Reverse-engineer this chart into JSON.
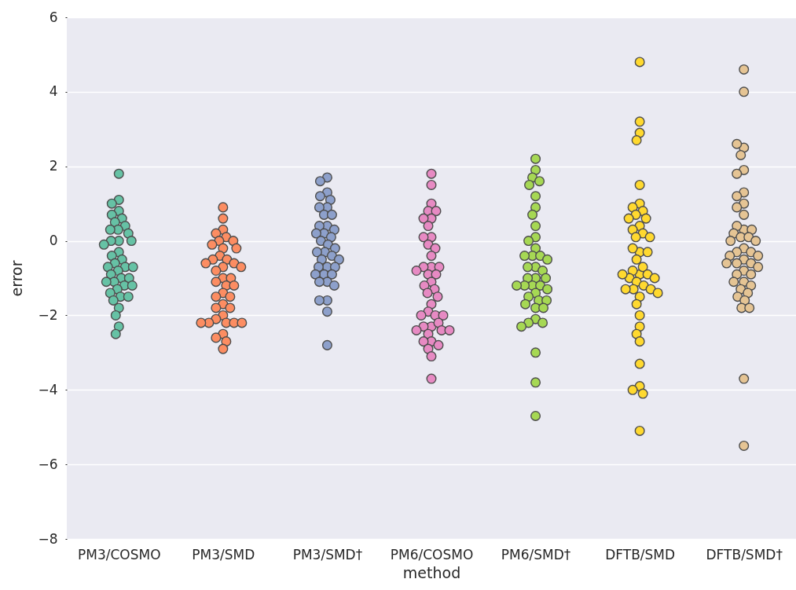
{
  "chart_data": {
    "type": "scatter",
    "xlabel": "method",
    "ylabel": "error",
    "categories": [
      "PM3/COSMO",
      "PM3/SMD",
      "PM3/SMD†",
      "PM6/COSMO",
      "PM6/SMD†",
      "DFTB/SMD",
      "DFTB/SMD†"
    ],
    "ylim": [
      -8,
      6
    ],
    "yticks": [
      -8,
      -6,
      -4,
      -2,
      0,
      2,
      4,
      6
    ],
    "grid": "y",
    "marker": "circle",
    "series": [
      {
        "color": "#66c2a5",
        "x": [
          "PM3/COSMO",
          "PM3/COSMO",
          "PM3/COSMO",
          "PM3/COSMO",
          "PM3/COSMO",
          "PM3/COSMO",
          "PM3/COSMO",
          "PM3/COSMO",
          "PM3/COSMO",
          "PM3/COSMO",
          "PM3/COSMO",
          "PM3/COSMO",
          "PM3/COSMO",
          "PM3/COSMO",
          "PM3/COSMO",
          "PM3/COSMO",
          "PM3/COSMO",
          "PM3/COSMO",
          "PM3/COSMO",
          "PM3/COSMO",
          "PM3/COSMO",
          "PM3/COSMO",
          "PM3/COSMO",
          "PM3/COSMO",
          "PM3/COSMO",
          "PM3/COSMO",
          "PM3/COSMO",
          "PM3/COSMO",
          "PM3/COSMO",
          "PM3/COSMO",
          "PM3/COSMO",
          "PM3/COSMO",
          "PM3/COSMO",
          "PM3/COSMO",
          "PM3/COSMO",
          "PM3/COSMO",
          "PM3/COSMO",
          "PM3/COSMO",
          "PM3/COSMO"
        ],
        "values": [
          1.8,
          1.1,
          1.0,
          0.8,
          0.7,
          0.6,
          0.5,
          0.4,
          0.3,
          0.3,
          0.2,
          0,
          0,
          0,
          -0.1,
          -0.3,
          -0.4,
          -0.5,
          -0.6,
          -0.7,
          -0.7,
          -0.7,
          -0.8,
          -0.9,
          -1.0,
          -1.0,
          -1.1,
          -1.1,
          -1.2,
          -1.2,
          -1.3,
          -1.4,
          -1.5,
          -1.5,
          -1.6,
          -1.8,
          -2.0,
          -2.3,
          -2.5
        ]
      },
      {
        "color": "#fc8d62",
        "x": [
          "PM3/SMD",
          "PM3/SMD",
          "PM3/SMD",
          "PM3/SMD",
          "PM3/SMD",
          "PM3/SMD",
          "PM3/SMD",
          "PM3/SMD",
          "PM3/SMD",
          "PM3/SMD",
          "PM3/SMD",
          "PM3/SMD",
          "PM3/SMD",
          "PM3/SMD",
          "PM3/SMD",
          "PM3/SMD",
          "PM3/SMD",
          "PM3/SMD",
          "PM3/SMD",
          "PM3/SMD",
          "PM3/SMD",
          "PM3/SMD",
          "PM3/SMD",
          "PM3/SMD",
          "PM3/SMD",
          "PM3/SMD",
          "PM3/SMD",
          "PM3/SMD",
          "PM3/SMD",
          "PM3/SMD",
          "PM3/SMD",
          "PM3/SMD",
          "PM3/SMD",
          "PM3/SMD",
          "PM3/SMD",
          "PM3/SMD",
          "PM3/SMD",
          "PM3/SMD",
          "PM3/SMD",
          "PM3/SMD"
        ],
        "values": [
          0.9,
          0.6,
          0.3,
          0.2,
          0.1,
          0,
          0,
          -0.1,
          -0.2,
          -0.2,
          -0.4,
          -0.5,
          -0.5,
          -0.6,
          -0.7,
          -0.6,
          -0.7,
          -0.8,
          -1.0,
          -1.0,
          -1.1,
          -1.2,
          -1.2,
          -1.4,
          -1.5,
          -1.5,
          -1.7,
          -1.8,
          -1.8,
          -2.0,
          -2.1,
          -2.2,
          -2.2,
          -2.2,
          -2.2,
          -2.2,
          -2.5,
          -2.6,
          -2.7,
          -2.9
        ]
      },
      {
        "color": "#8da0cb",
        "x": [
          "PM3/SMD†",
          "PM3/SMD†",
          "PM3/SMD†",
          "PM3/SMD†",
          "PM3/SMD†",
          "PM3/SMD†",
          "PM3/SMD†",
          "PM3/SMD†",
          "PM3/SMD†",
          "PM3/SMD†",
          "PM3/SMD†",
          "PM3/SMD†",
          "PM3/SMD†",
          "PM3/SMD†",
          "PM3/SMD†",
          "PM3/SMD†",
          "PM3/SMD†",
          "PM3/SMD†",
          "PM3/SMD†",
          "PM3/SMD†",
          "PM3/SMD†",
          "PM3/SMD†",
          "PM3/SMD†",
          "PM3/SMD†",
          "PM3/SMD†",
          "PM3/SMD†",
          "PM3/SMD†",
          "PM3/SMD†",
          "PM3/SMD†",
          "PM3/SMD†",
          "PM3/SMD†",
          "PM3/SMD†",
          "PM3/SMD†",
          "PM3/SMD†",
          "PM3/SMD†",
          "PM3/SMD†"
        ],
        "values": [
          1.7,
          1.6,
          1.3,
          1.2,
          1.1,
          0.9,
          0.9,
          0.7,
          0.7,
          0.4,
          0.4,
          0.3,
          0.2,
          0.2,
          0.1,
          0,
          -0.1,
          -0.2,
          -0.3,
          -0.3,
          -0.4,
          -0.5,
          -0.5,
          -0.7,
          -0.7,
          -0.7,
          -0.9,
          -0.9,
          -0.9,
          -1.1,
          -1.1,
          -1.2,
          -1.6,
          -1.6,
          -1.9,
          -2.8
        ]
      },
      {
        "color": "#e78ac3",
        "x": [
          "PM6/COSMO",
          "PM6/COSMO",
          "PM6/COSMO",
          "PM6/COSMO",
          "PM6/COSMO",
          "PM6/COSMO",
          "PM6/COSMO",
          "PM6/COSMO",
          "PM6/COSMO",
          "PM6/COSMO",
          "PM6/COSMO",
          "PM6/COSMO",
          "PM6/COSMO",
          "PM6/COSMO",
          "PM6/COSMO",
          "PM6/COSMO",
          "PM6/COSMO",
          "PM6/COSMO",
          "PM6/COSMO",
          "PM6/COSMO",
          "PM6/COSMO",
          "PM6/COSMO",
          "PM6/COSMO",
          "PM6/COSMO",
          "PM6/COSMO",
          "PM6/COSMO",
          "PM6/COSMO",
          "PM6/COSMO",
          "PM6/COSMO",
          "PM6/COSMO",
          "PM6/COSMO",
          "PM6/COSMO",
          "PM6/COSMO",
          "PM6/COSMO",
          "PM6/COSMO",
          "PM6/COSMO",
          "PM6/COSMO",
          "PM6/COSMO",
          "PM6/COSMO",
          "PM6/COSMO",
          "PM6/COSMO",
          "PM6/COSMO"
        ],
        "values": [
          1.8,
          1.5,
          1.0,
          0.8,
          0.8,
          0.6,
          0.6,
          0.4,
          0.1,
          0.1,
          -0.1,
          -0.2,
          -0.4,
          -0.7,
          -0.7,
          -0.7,
          -0.8,
          -0.9,
          -0.9,
          -1.1,
          -1.2,
          -1.3,
          -1.4,
          -1.5,
          -1.7,
          -1.9,
          -2.0,
          -2.0,
          -2.0,
          -2.3,
          -2.3,
          -2.2,
          -2.4,
          -2.4,
          -2.4,
          -2.5,
          -2.7,
          -2.7,
          -2.8,
          -2.9,
          -3.1,
          -3.7
        ]
      },
      {
        "color": "#a6d854",
        "x": [
          "PM6/SMD†",
          "PM6/SMD†",
          "PM6/SMD†",
          "PM6/SMD†",
          "PM6/SMD†",
          "PM6/SMD†",
          "PM6/SMD†",
          "PM6/SMD†",
          "PM6/SMD†",
          "PM6/SMD†",
          "PM6/SMD†",
          "PM6/SMD†",
          "PM6/SMD†",
          "PM6/SMD†",
          "PM6/SMD†",
          "PM6/SMD†",
          "PM6/SMD†",
          "PM6/SMD†",
          "PM6/SMD†",
          "PM6/SMD†",
          "PM6/SMD†",
          "PM6/SMD†",
          "PM6/SMD†",
          "PM6/SMD†",
          "PM6/SMD†",
          "PM6/SMD†",
          "PM6/SMD†",
          "PM6/SMD†",
          "PM6/SMD†",
          "PM6/SMD†",
          "PM6/SMD†",
          "PM6/SMD†",
          "PM6/SMD†",
          "PM6/SMD†",
          "PM6/SMD†",
          "PM6/SMD†",
          "PM6/SMD†",
          "PM6/SMD†",
          "PM6/SMD†",
          "PM6/SMD†",
          "PM6/SMD†"
        ],
        "values": [
          2.2,
          1.9,
          1.7,
          1.6,
          1.5,
          1.2,
          0.9,
          0.7,
          0.4,
          0.1,
          0,
          -0.2,
          -0.4,
          -0.4,
          -0.4,
          -0.5,
          -0.7,
          -0.7,
          -0.8,
          -1.0,
          -1.0,
          -1.0,
          -1.2,
          -1.2,
          -1.2,
          -1.4,
          -1.3,
          -1.2,
          -1.5,
          -1.6,
          -1.6,
          -1.8,
          -1.7,
          -1.8,
          -2.1,
          -2.2,
          -2.2,
          -2.3,
          -3.0,
          -3.8,
          -4.7
        ]
      },
      {
        "color": "#ffd92f",
        "x": [
          "DFTB/SMD",
          "DFTB/SMD",
          "DFTB/SMD",
          "DFTB/SMD",
          "DFTB/SMD",
          "DFTB/SMD",
          "DFTB/SMD",
          "DFTB/SMD",
          "DFTB/SMD",
          "DFTB/SMD",
          "DFTB/SMD",
          "DFTB/SMD",
          "DFTB/SMD",
          "DFTB/SMD",
          "DFTB/SMD",
          "DFTB/SMD",
          "DFTB/SMD",
          "DFTB/SMD",
          "DFTB/SMD",
          "DFTB/SMD",
          "DFTB/SMD",
          "DFTB/SMD",
          "DFTB/SMD",
          "DFTB/SMD",
          "DFTB/SMD",
          "DFTB/SMD",
          "DFTB/SMD",
          "DFTB/SMD",
          "DFTB/SMD",
          "DFTB/SMD",
          "DFTB/SMD",
          "DFTB/SMD",
          "DFTB/SMD",
          "DFTB/SMD",
          "DFTB/SMD",
          "DFTB/SMD",
          "DFTB/SMD",
          "DFTB/SMD",
          "DFTB/SMD",
          "DFTB/SMD",
          "DFTB/SMD",
          "DFTB/SMD",
          "DFTB/SMD",
          "DFTB/SMD"
        ],
        "values": [
          4.8,
          3.2,
          2.9,
          2.7,
          1.5,
          1.0,
          0.9,
          0.8,
          0.7,
          0.6,
          0.6,
          0.4,
          0.3,
          0.2,
          0.1,
          0.1,
          -0.3,
          -0.2,
          -0.3,
          -0.5,
          -0.9,
          -0.8,
          -0.7,
          -0.9,
          -1.0,
          -1.0,
          -0.9,
          -1.1,
          -1.2,
          -1.3,
          -1.3,
          -1.3,
          -1.5,
          -1.4,
          -1.7,
          -2.0,
          -2.3,
          -2.5,
          -2.7,
          -3.3,
          -3.9,
          -4.0,
          -4.1,
          -5.1
        ]
      },
      {
        "color": "#e5c494",
        "x": [
          "DFTB/SMD†",
          "DFTB/SMD†",
          "DFTB/SMD†",
          "DFTB/SMD†",
          "DFTB/SMD†",
          "DFTB/SMD†",
          "DFTB/SMD†",
          "DFTB/SMD†",
          "DFTB/SMD†",
          "DFTB/SMD†",
          "DFTB/SMD†",
          "DFTB/SMD†",
          "DFTB/SMD†",
          "DFTB/SMD†",
          "DFTB/SMD†",
          "DFTB/SMD†",
          "DFTB/SMD†",
          "DFTB/SMD†",
          "DFTB/SMD†",
          "DFTB/SMD†",
          "DFTB/SMD†",
          "DFTB/SMD†",
          "DFTB/SMD†",
          "DFTB/SMD†",
          "DFTB/SMD†",
          "DFTB/SMD†",
          "DFTB/SMD†",
          "DFTB/SMD†",
          "DFTB/SMD†",
          "DFTB/SMD†",
          "DFTB/SMD†",
          "DFTB/SMD†",
          "DFTB/SMD†",
          "DFTB/SMD†",
          "DFTB/SMD†",
          "DFTB/SMD†",
          "DFTB/SMD†",
          "DFTB/SMD†",
          "DFTB/SMD†",
          "DFTB/SMD†",
          "DFTB/SMD†",
          "DFTB/SMD†",
          "DFTB/SMD†",
          "DFTB/SMD†"
        ],
        "values": [
          4.6,
          4.0,
          2.5,
          2.6,
          2.3,
          1.9,
          1.8,
          1.3,
          1.2,
          1.0,
          0.9,
          0.7,
          0.3,
          0.4,
          0.3,
          0.2,
          0.1,
          0.1,
          0,
          0,
          -0.2,
          -0.3,
          -0.3,
          -0.4,
          -0.4,
          -0.5,
          -0.6,
          -0.6,
          -0.6,
          -0.7,
          -0.8,
          -0.9,
          -0.9,
          -1.1,
          -1.1,
          -1.2,
          -1.3,
          -1.4,
          -1.5,
          -1.6,
          -1.8,
          -1.8,
          -3.7,
          -5.5
        ]
      }
    ]
  }
}
